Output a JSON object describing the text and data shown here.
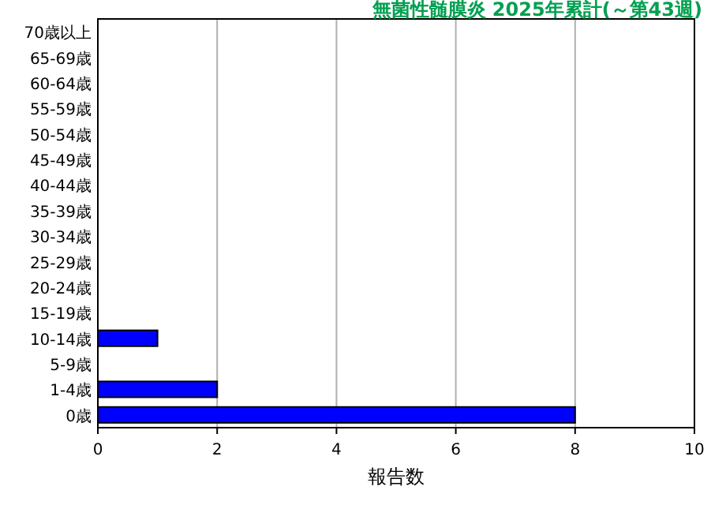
{
  "chart_data": {
    "type": "bar",
    "orientation": "horizontal",
    "title": "無菌性髄膜炎 2025年累計(～第43週)",
    "xlabel": "報告数",
    "categories": [
      "70歳以上",
      "65-69歳",
      "60-64歳",
      "55-59歳",
      "50-54歳",
      "45-49歳",
      "40-44歳",
      "35-39歳",
      "30-34歳",
      "25-29歳",
      "20-24歳",
      "15-19歳",
      "10-14歳",
      "5-9歳",
      "1-4歳",
      "0歳"
    ],
    "values": [
      0,
      0,
      0,
      0,
      0,
      0,
      0,
      0,
      0,
      0,
      0,
      0,
      1,
      0,
      2,
      8
    ],
    "color": "#0000ff",
    "xlim": [
      0,
      10
    ],
    "xticks": [
      0,
      2,
      4,
      6,
      8,
      10
    ],
    "grid": "x"
  }
}
